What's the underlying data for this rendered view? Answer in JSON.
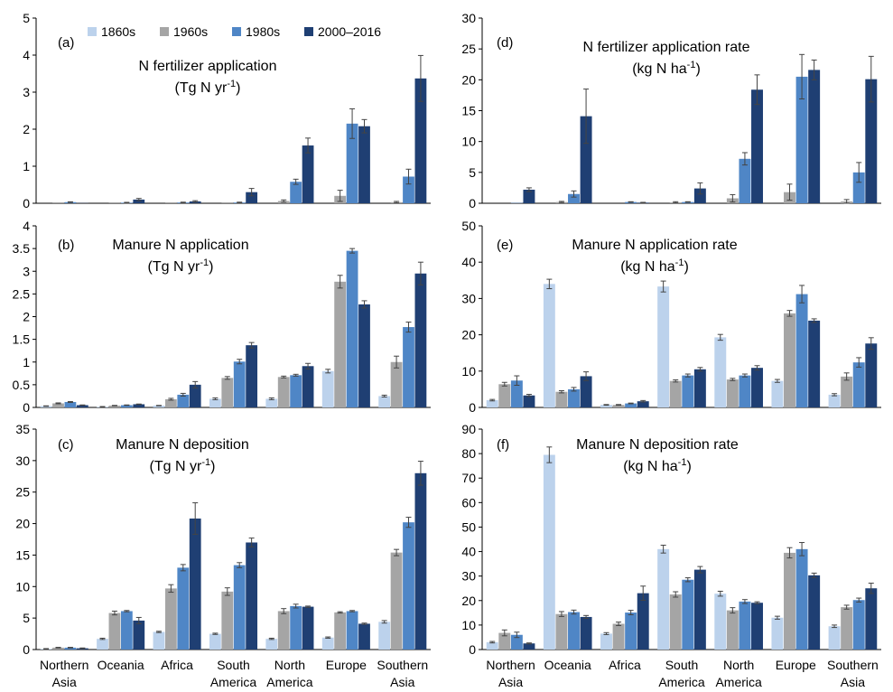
{
  "legend": {
    "entries": [
      "1860s",
      "1960s",
      "1980s",
      "2000–2016"
    ],
    "colors": [
      "#bcd2ec",
      "#a5a5a5",
      "#4f86c6",
      "#1f3f73"
    ]
  },
  "categories": [
    [
      "Northern",
      "Asia"
    ],
    [
      "Oceania"
    ],
    [
      "Africa"
    ],
    [
      "South",
      "America"
    ],
    [
      "North",
      "America"
    ],
    [
      "Europe"
    ],
    [
      "Southern",
      "Asia"
    ]
  ],
  "chart_data": [
    {
      "type": "bar",
      "panel": "(a)",
      "title_line1": "N fertilizer application",
      "title_line2": "(Tg N yr",
      "title_sup": "-1",
      "title_end": ")",
      "ylim": [
        0,
        5
      ],
      "yticks": [
        0,
        1,
        2,
        3,
        4,
        5
      ],
      "grid": false,
      "series": [
        {
          "name": "1860s",
          "values": [
            0,
            0,
            0,
            0,
            0,
            0,
            0
          ],
          "err": [
            0,
            0,
            0,
            0,
            0,
            0,
            0
          ]
        },
        {
          "name": "1960s",
          "values": [
            0.005,
            0.005,
            0.005,
            0.005,
            0.06,
            0.2,
            0.03
          ],
          "err": [
            0,
            0,
            0,
            0,
            0.03,
            0.15,
            0.02
          ]
        },
        {
          "name": "1980s",
          "values": [
            0.03,
            0.015,
            0.02,
            0.02,
            0.58,
            2.15,
            0.72
          ],
          "err": [
            0.01,
            0.01,
            0.01,
            0.01,
            0.07,
            0.4,
            0.2
          ]
        },
        {
          "name": "2000–2016",
          "values": [
            0.005,
            0.1,
            0.05,
            0.3,
            1.56,
            2.08,
            3.37
          ],
          "err": [
            0,
            0.03,
            0.02,
            0.1,
            0.2,
            0.18,
            0.62
          ]
        }
      ]
    },
    {
      "type": "bar",
      "panel": "(d)",
      "title_line1": "N fertilizer application rate",
      "title_line2": "(kg N ha",
      "title_sup": "-1",
      "title_end": ")",
      "ylim": [
        0,
        30
      ],
      "yticks": [
        0,
        5,
        10,
        15,
        20,
        25,
        30
      ],
      "grid": false,
      "series": [
        {
          "name": "1860s",
          "values": [
            0,
            0,
            0,
            0,
            0,
            0,
            0
          ],
          "err": [
            0,
            0,
            0,
            0,
            0,
            0,
            0
          ]
        },
        {
          "name": "1960s",
          "values": [
            0,
            0.2,
            0,
            0.15,
            0.8,
            1.8,
            0.3
          ],
          "err": [
            0,
            0.1,
            0,
            0.1,
            0.6,
            1.3,
            0.3
          ]
        },
        {
          "name": "1980s",
          "values": [
            0.05,
            1.5,
            0.2,
            0.2,
            7.2,
            20.5,
            5.0
          ],
          "err": [
            0,
            0.5,
            0.05,
            0.05,
            1.0,
            3.6,
            1.6
          ]
        },
        {
          "name": "2000–2016",
          "values": [
            2.2,
            14.1,
            0.1,
            2.4,
            18.4,
            21.6,
            20.1
          ],
          "err": [
            0.3,
            4.4,
            0.05,
            0.9,
            2.4,
            1.6,
            3.7
          ]
        }
      ]
    },
    {
      "type": "bar",
      "panel": "(b)",
      "title_line1": "Manure N application",
      "title_line2": "(Tg N yr",
      "title_sup": "-1",
      "title_end": ")",
      "ylim": [
        0,
        4
      ],
      "yticks": [
        0,
        0.5,
        1,
        1.5,
        2,
        2.5,
        3,
        3.5,
        4
      ],
      "grid": false,
      "series": [
        {
          "name": "1860s",
          "values": [
            0.03,
            0.015,
            0.04,
            0.19,
            0.19,
            0.8,
            0.25
          ],
          "err": [
            0.005,
            0.005,
            0.005,
            0.02,
            0.02,
            0.04,
            0.02
          ]
        },
        {
          "name": "1960s",
          "values": [
            0.09,
            0.04,
            0.18,
            0.65,
            0.67,
            2.77,
            1.0
          ],
          "err": [
            0.01,
            0.005,
            0.02,
            0.03,
            0.02,
            0.14,
            0.13
          ]
        },
        {
          "name": "1980s",
          "values": [
            0.12,
            0.05,
            0.28,
            1.01,
            0.71,
            3.45,
            1.77
          ],
          "err": [
            0.01,
            0.005,
            0.03,
            0.05,
            0.02,
            0.05,
            0.11
          ]
        },
        {
          "name": "2000–2016",
          "values": [
            0.05,
            0.07,
            0.5,
            1.37,
            0.91,
            2.27,
            2.95
          ],
          "err": [
            0.005,
            0.005,
            0.07,
            0.06,
            0.06,
            0.08,
            0.25
          ]
        }
      ]
    },
    {
      "type": "bar",
      "panel": "(e)",
      "title_line1": "Manure N application rate",
      "title_line2": "(kg N ha",
      "title_sup": "-1",
      "title_end": ")",
      "ylim": [
        0,
        50
      ],
      "yticks": [
        0,
        10,
        20,
        30,
        40,
        50
      ],
      "grid": false,
      "series": [
        {
          "name": "1860s",
          "values": [
            2.0,
            34.0,
            0.7,
            33.3,
            19.3,
            7.3,
            3.5
          ],
          "err": [
            0.2,
            1.3,
            0.1,
            1.5,
            0.8,
            0.4,
            0.3
          ]
        },
        {
          "name": "1960s",
          "values": [
            6.4,
            4.3,
            0.7,
            7.3,
            7.7,
            25.9,
            8.5
          ],
          "err": [
            0.5,
            0.3,
            0.1,
            0.3,
            0.3,
            0.8,
            1.0
          ]
        },
        {
          "name": "1980s",
          "values": [
            7.4,
            5.0,
            1.1,
            8.8,
            8.8,
            31.2,
            12.4
          ],
          "err": [
            1.3,
            0.5,
            0.1,
            0.4,
            0.4,
            2.4,
            1.3
          ]
        },
        {
          "name": "2000–2016",
          "values": [
            3.3,
            8.6,
            1.7,
            10.5,
            10.9,
            23.9,
            17.6
          ],
          "err": [
            0.3,
            1.2,
            0.2,
            0.5,
            0.6,
            0.5,
            1.6
          ]
        }
      ]
    },
    {
      "type": "bar",
      "panel": "(c)",
      "title_line1": "Manure N deposition",
      "title_line2": "(Tg N yr",
      "title_sup": "-1",
      "title_end": ")",
      "ylim": [
        0,
        35
      ],
      "yticks": [
        0,
        5,
        10,
        15,
        20,
        25,
        30,
        35
      ],
      "grid": false,
      "series": [
        {
          "name": "1860s",
          "values": [
            0.1,
            1.7,
            2.8,
            2.5,
            1.7,
            1.9,
            4.4
          ],
          "err": [
            0.05,
            0.1,
            0.1,
            0.1,
            0.1,
            0.1,
            0.2
          ]
        },
        {
          "name": "1960s",
          "values": [
            0.3,
            5.8,
            9.7,
            9.2,
            6.1,
            5.9,
            15.4
          ],
          "err": [
            0.05,
            0.3,
            0.6,
            0.6,
            0.4,
            0.1,
            0.5
          ]
        },
        {
          "name": "1980s",
          "values": [
            0.3,
            6.1,
            13.0,
            13.4,
            6.9,
            6.1,
            20.2
          ],
          "err": [
            0.05,
            0.1,
            0.5,
            0.4,
            0.3,
            0.1,
            0.8
          ]
        },
        {
          "name": "2000–2016",
          "values": [
            0.2,
            4.6,
            20.8,
            17.0,
            6.8,
            4.1,
            28.0
          ],
          "err": [
            0.05,
            0.5,
            2.5,
            0.7,
            0.1,
            0.1,
            1.9
          ]
        }
      ]
    },
    {
      "type": "bar",
      "panel": "(f)",
      "title_line1": "Manure N deposition rate",
      "title_line2": "(kg N ha",
      "title_sup": "-1",
      "title_end": ")",
      "ylim": [
        0,
        90
      ],
      "yticks": [
        0,
        10,
        20,
        30,
        40,
        50,
        60,
        70,
        80,
        90
      ],
      "grid": false,
      "series": [
        {
          "name": "1860s",
          "values": [
            3.0,
            79.5,
            6.5,
            41.0,
            22.8,
            13.0,
            9.5
          ],
          "err": [
            0.3,
            3.2,
            0.4,
            1.6,
            1.0,
            0.6,
            0.5
          ]
        },
        {
          "name": "1960s",
          "values": [
            6.8,
            14.5,
            10.5,
            22.5,
            16.0,
            39.5,
            17.3
          ],
          "err": [
            1.2,
            1.0,
            0.7,
            1.1,
            1.1,
            2.1,
            0.8
          ]
        },
        {
          "name": "1980s",
          "values": [
            6.0,
            15.3,
            15.1,
            28.5,
            19.6,
            41.0,
            20.2
          ],
          "err": [
            1.1,
            0.8,
            0.9,
            0.8,
            0.8,
            2.7,
            0.8
          ]
        },
        {
          "name": "2000–2016",
          "values": [
            2.5,
            13.3,
            23.0,
            32.6,
            19.1,
            30.3,
            25.0
          ],
          "err": [
            0.2,
            0.6,
            2.9,
            1.3,
            0.4,
            0.9,
            2.1
          ]
        }
      ]
    }
  ]
}
